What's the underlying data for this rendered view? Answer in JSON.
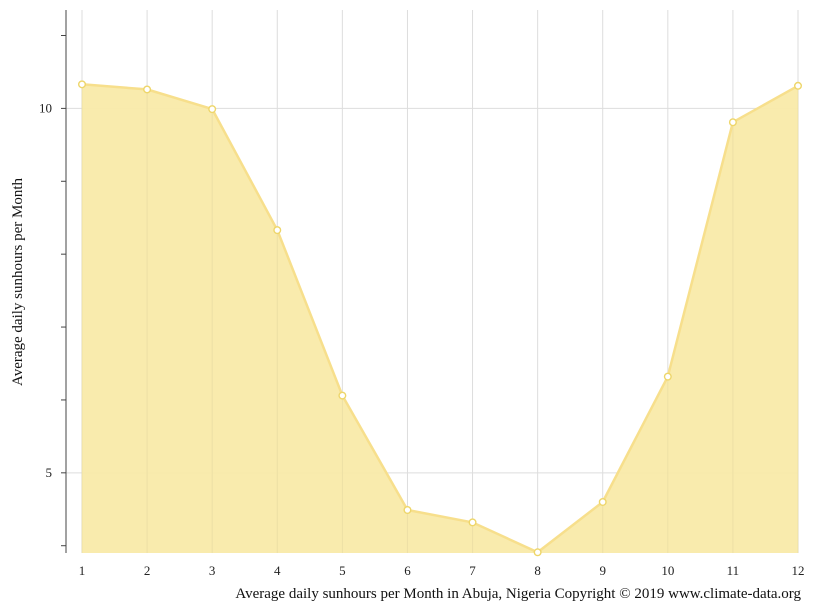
{
  "chart_data": {
    "type": "area",
    "x": [
      1,
      2,
      3,
      4,
      5,
      6,
      7,
      8,
      9,
      10,
      11,
      12
    ],
    "values": [
      10.33,
      10.26,
      9.99,
      8.33,
      6.06,
      4.49,
      4.32,
      3.91,
      4.6,
      6.32,
      9.81,
      10.31
    ],
    "ylabel": "Average daily sunhours per Month",
    "caption": "Average daily sunhours per Month in Abuja, Nigeria Copyright © 2019 www.climate-data.org",
    "ylim": [
      3.9,
      11.35
    ],
    "yticks": [
      5,
      10
    ],
    "xticks": [
      "1",
      "2",
      "3",
      "4",
      "5",
      "6",
      "7",
      "8",
      "9",
      "10",
      "11",
      "12"
    ],
    "grid": true,
    "colors": {
      "fill": "#f9eaa9",
      "line": "#f7df8c",
      "point_stroke": "#eed66a",
      "grid": "#dddddd",
      "axis": "#444444"
    }
  }
}
